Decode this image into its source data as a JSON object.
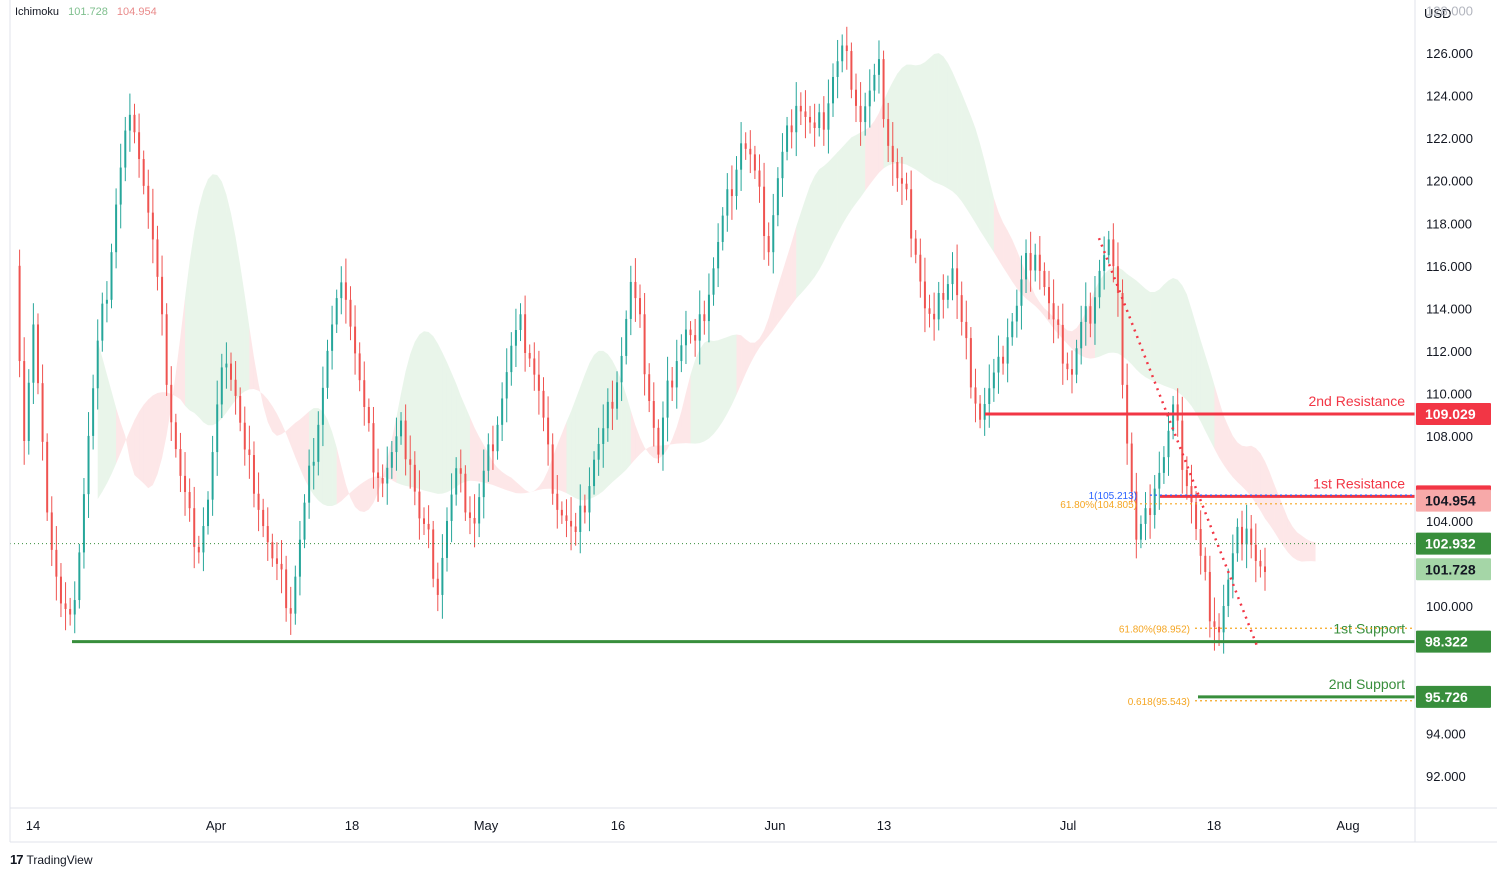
{
  "header": {
    "indicator_name": "Ichimoku",
    "indicator_value_1": "101.728",
    "indicator_value_2": "104.954",
    "indicator_color_1": "#7fbf8e",
    "indicator_color_2": "#e98a8a"
  },
  "axis": {
    "currency": "USD",
    "x_ticks": [
      "14",
      "Apr",
      "18",
      "May",
      "16",
      "Jun",
      "13",
      "Jul",
      "18",
      "Aug"
    ],
    "y_ticks": [
      "126.000",
      "124.000",
      "122.000",
      "120.000",
      "118.000",
      "116.000",
      "114.000",
      "112.000",
      "110.000",
      "108.000",
      "104.000",
      "100.000",
      "94.000",
      "92.000"
    ],
    "y_top_partial": "128.000"
  },
  "chart_data": {
    "type": "candlestick",
    "y_unit": "USD",
    "ylim": [
      90.5,
      128.5
    ],
    "levels": [
      {
        "name": "2nd Resistance",
        "value": 109.029,
        "label": "109.029",
        "color": "#f23645"
      },
      {
        "name": "1st Resistance",
        "value": 105.156,
        "label": "105.156",
        "color": "#f23645"
      },
      {
        "name": "1st Support",
        "value": 98.322,
        "label": "98.322",
        "color": "#388e3c"
      },
      {
        "name": "2nd Support",
        "value": 95.726,
        "label": "95.726",
        "color": "#388e3c"
      }
    ],
    "price_badges": [
      {
        "value": 104.954,
        "label": "104.954",
        "color": "#f7a9a9"
      },
      {
        "value": 102.932,
        "label": "102.932",
        "color": "#388e3c"
      },
      {
        "value": 101.728,
        "label": "101.728",
        "color": "#a5d6a7"
      }
    ],
    "fib_annotations": [
      {
        "text": "1(105.213)",
        "value": 105.213,
        "color": "#2962ff"
      },
      {
        "text": "61.80%(104.805)",
        "value": 104.805,
        "color": "#f5a623"
      },
      {
        "text": "61.80%(98.952)",
        "value": 98.952,
        "color": "#f5a623"
      },
      {
        "text": "0.618(95.543)",
        "value": 95.543,
        "color": "#f5a623"
      }
    ],
    "path_points": [
      [
        0,
        116
      ],
      [
        2,
        108
      ],
      [
        4,
        113
      ],
      [
        6,
        107
      ],
      [
        8,
        103
      ],
      [
        10,
        100
      ],
      [
        12,
        99
      ],
      [
        14,
        103
      ],
      [
        16,
        108
      ],
      [
        18,
        112
      ],
      [
        20,
        115
      ],
      [
        22,
        119
      ],
      [
        24,
        122
      ],
      [
        26,
        123
      ],
      [
        28,
        120
      ],
      [
        30,
        117
      ],
      [
        32,
        113
      ],
      [
        34,
        109
      ],
      [
        36,
        106
      ],
      [
        38,
        104
      ],
      [
        40,
        103
      ],
      [
        42,
        105
      ],
      [
        44,
        109
      ],
      [
        46,
        112
      ],
      [
        48,
        110
      ],
      [
        50,
        107
      ],
      [
        52,
        106
      ],
      [
        54,
        104
      ],
      [
        56,
        102
      ],
      [
        58,
        101
      ],
      [
        60,
        100
      ],
      [
        62,
        103
      ],
      [
        64,
        106
      ],
      [
        66,
        109
      ],
      [
        68,
        112
      ],
      [
        70,
        114
      ],
      [
        72,
        115
      ],
      [
        74,
        112
      ],
      [
        76,
        109
      ],
      [
        78,
        107
      ],
      [
        80,
        106
      ],
      [
        82,
        107
      ],
      [
        84,
        108
      ],
      [
        86,
        107
      ],
      [
        88,
        104
      ],
      [
        90,
        103
      ],
      [
        92,
        101
      ],
      [
        94,
        104
      ],
      [
        96,
        106
      ],
      [
        98,
        105
      ],
      [
        100,
        104
      ],
      [
        102,
        106
      ],
      [
        104,
        108
      ],
      [
        106,
        110
      ],
      [
        108,
        112
      ],
      [
        110,
        113
      ],
      [
        112,
        112
      ],
      [
        114,
        110
      ],
      [
        116,
        107
      ],
      [
        118,
        105
      ],
      [
        120,
        104
      ],
      [
        122,
        103
      ],
      [
        124,
        105
      ],
      [
        126,
        107
      ],
      [
        128,
        108
      ],
      [
        130,
        110
      ],
      [
        132,
        112
      ],
      [
        134,
        115
      ],
      [
        136,
        113
      ],
      [
        138,
        110
      ],
      [
        140,
        107
      ],
      [
        142,
        110
      ],
      [
        144,
        112
      ],
      [
        146,
        113
      ],
      [
        148,
        112
      ],
      [
        150,
        114
      ],
      [
        152,
        116
      ],
      [
        154,
        118
      ],
      [
        156,
        120
      ],
      [
        158,
        122
      ],
      [
        160,
        121
      ],
      [
        162,
        119
      ],
      [
        164,
        117
      ],
      [
        166,
        120
      ],
      [
        168,
        122
      ],
      [
        170,
        124
      ],
      [
        172,
        123
      ],
      [
        174,
        122
      ],
      [
        176,
        123
      ],
      [
        178,
        125
      ],
      [
        180,
        126
      ],
      [
        182,
        125
      ],
      [
        184,
        123
      ],
      [
        186,
        124
      ],
      [
        188,
        125
      ],
      [
        190,
        122
      ],
      [
        192,
        120
      ],
      [
        194,
        119
      ],
      [
        196,
        117
      ],
      [
        198,
        114
      ],
      [
        200,
        113
      ],
      [
        202,
        115
      ],
      [
        204,
        116
      ],
      [
        206,
        113
      ],
      [
        208,
        111
      ],
      [
        210,
        109
      ],
      [
        212,
        110
      ],
      [
        214,
        111
      ],
      [
        216,
        113
      ],
      [
        218,
        114
      ],
      [
        220,
        116
      ],
      [
        222,
        117
      ],
      [
        224,
        115
      ],
      [
        226,
        113
      ],
      [
        228,
        112
      ],
      [
        230,
        111
      ],
      [
        232,
        113
      ],
      [
        234,
        114
      ],
      [
        236,
        116
      ],
      [
        238,
        117
      ],
      [
        240,
        114
      ],
      [
        242,
        108
      ],
      [
        244,
        103
      ],
      [
        246,
        104
      ],
      [
        248,
        106
      ],
      [
        250,
        107
      ],
      [
        252,
        109
      ],
      [
        254,
        107
      ],
      [
        256,
        105
      ],
      [
        258,
        102
      ],
      [
        260,
        100
      ],
      [
        262,
        99
      ],
      [
        264,
        101
      ],
      [
        266,
        103
      ],
      [
        268,
        104
      ],
      [
        270,
        102
      ],
      [
        272,
        101
      ]
    ],
    "ichimoku_cloud_note": "cloud shading alternating green (bullish) and red (bearish)"
  },
  "watermark": {
    "logo": "17",
    "brand": "TradingView"
  }
}
